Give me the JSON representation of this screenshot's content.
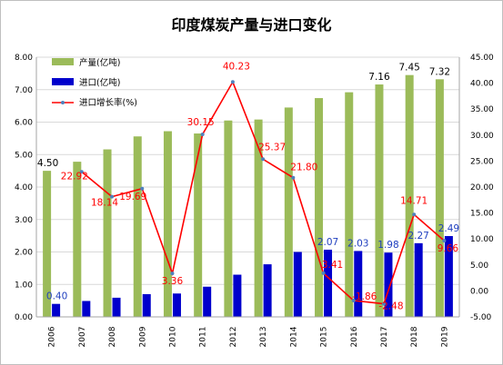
{
  "chart_data": {
    "type": "bar",
    "title": "印度煤炭产量与进口变化",
    "categories": [
      "2006",
      "2007",
      "2008",
      "2009",
      "2010",
      "2011",
      "2012",
      "2013",
      "2014",
      "2015",
      "2016",
      "2017",
      "2018",
      "2019"
    ],
    "series": [
      {
        "name": "产量(亿吨)",
        "type": "bar",
        "axis": "left",
        "color": "#9bbb59",
        "values": [
          4.5,
          4.78,
          5.16,
          5.56,
          5.72,
          5.65,
          6.05,
          6.08,
          6.45,
          6.74,
          6.92,
          7.16,
          7.45,
          7.32
        ],
        "labels": {
          "2006": "4.50",
          "2017": "7.16",
          "2018": "7.45",
          "2019": "7.32"
        },
        "label_color": "#000000"
      },
      {
        "name": "进口(亿吨)",
        "type": "bar",
        "axis": "left",
        "color": "#0000cc",
        "values": [
          0.4,
          0.49,
          0.59,
          0.7,
          0.72,
          0.93,
          1.3,
          1.62,
          2.0,
          2.07,
          2.03,
          1.98,
          2.27,
          2.49
        ],
        "labels": {
          "2006": "0.40",
          "2015": "2.07",
          "2016": "2.03",
          "2017": "1.98",
          "2018": "2.27",
          "2019": "2.49"
        },
        "label_color": "#1f3fbf"
      },
      {
        "name": "进口增长率(%)",
        "type": "line",
        "axis": "right",
        "color": "#ff0000",
        "marker_color": "#4f81bd",
        "values": [
          null,
          22.92,
          18.14,
          19.69,
          3.36,
          30.15,
          40.23,
          25.37,
          21.8,
          3.41,
          -1.86,
          -2.48,
          14.71,
          9.66
        ],
        "labels": [
          "",
          "22.92",
          "18.14",
          "19.69",
          "3.36",
          "30.15",
          "40.23",
          "25.37",
          "21.80",
          "3.41",
          "-1.86",
          "-2.48",
          "14.71",
          "9.66"
        ],
        "label_color": "#ff0000"
      }
    ],
    "y_left": {
      "min": 0,
      "max": 8,
      "step": 1,
      "decimals": 2
    },
    "y_right": {
      "min": -5,
      "max": 45,
      "step": 5,
      "decimals": 2
    },
    "grid": true,
    "legend_position": "top-left"
  }
}
